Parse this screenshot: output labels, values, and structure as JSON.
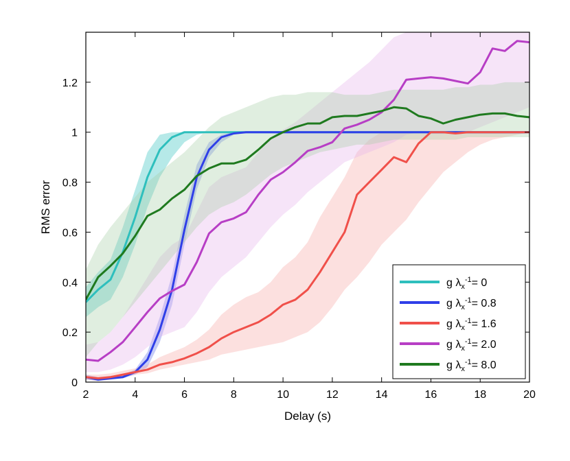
{
  "chart_data": {
    "type": "line",
    "title": "",
    "xlabel": "Delay (s)",
    "ylabel": "RMS error",
    "xlim": [
      2,
      20
    ],
    "ylim": [
      0,
      1.4
    ],
    "xticks": [
      2,
      4,
      6,
      8,
      10,
      12,
      14,
      16,
      18,
      20
    ],
    "yticks": [
      0,
      0.2,
      0.4,
      0.6,
      0.8,
      1,
      1.2
    ],
    "xtick_labels": [
      "2",
      "4",
      "6",
      "8",
      "10",
      "12",
      "14",
      "16",
      "18",
      "20"
    ],
    "ytick_labels": [
      "0",
      "0.2",
      "0.4",
      "0.6",
      "0.8",
      "1",
      "1.2"
    ],
    "grid": false,
    "legend_position": "bottom-right",
    "series": [
      {
        "name": "g λx-1= 0",
        "legend_prefix": "g λ",
        "legend_sub": "x",
        "legend_sup": "-1",
        "legend_value": "= 0",
        "color": "#2ebfbd",
        "x": [
          2,
          2.5,
          3,
          3.5,
          4,
          4.5,
          5,
          5.5,
          6,
          6.5,
          7,
          7.5,
          8,
          9,
          10,
          12,
          14,
          16,
          18,
          20
        ],
        "y": [
          0.32,
          0.37,
          0.41,
          0.52,
          0.66,
          0.82,
          0.93,
          0.98,
          1.0,
          1.0,
          1.0,
          1.0,
          1.0,
          1.0,
          1.0,
          1.0,
          1.0,
          1.0,
          1.0,
          1.0
        ],
        "band_lower": [
          0.26,
          0.3,
          0.33,
          0.42,
          0.55,
          0.7,
          0.82,
          0.9,
          0.96,
          0.99,
          1.0,
          1.0,
          1.0,
          1.0,
          1.0,
          1.0,
          1.0,
          1.0,
          1.0,
          1.0
        ],
        "band_upper": [
          0.38,
          0.44,
          0.49,
          0.62,
          0.77,
          0.92,
          0.99,
          1.0,
          1.0,
          1.0,
          1.0,
          1.0,
          1.0,
          1.0,
          1.0,
          1.0,
          1.0,
          1.0,
          1.0,
          1.0
        ],
        "band_color": "#2ebfbd"
      },
      {
        "name": "g λx-1= 0.8",
        "legend_prefix": "g λ",
        "legend_sub": "x",
        "legend_sup": "-1",
        "legend_value": "= 0.8",
        "color": "#2f3fe8",
        "x": [
          2,
          2.5,
          3,
          3.5,
          4,
          4.5,
          5,
          5.5,
          6,
          6.5,
          7,
          7.5,
          8,
          8.5,
          9,
          10,
          12,
          14,
          16,
          18,
          20
        ],
        "y": [
          0.02,
          0.01,
          0.015,
          0.02,
          0.04,
          0.09,
          0.21,
          0.37,
          0.61,
          0.82,
          0.93,
          0.98,
          0.995,
          1.0,
          1.0,
          1.0,
          1.0,
          1.0,
          1.0,
          1.0,
          1.0
        ],
        "band_lower": [
          0.01,
          0.005,
          0.01,
          0.015,
          0.03,
          0.06,
          0.16,
          0.31,
          0.55,
          0.77,
          0.9,
          0.96,
          0.99,
          1.0,
          1.0,
          1.0,
          1.0,
          1.0,
          1.0,
          1.0,
          1.0
        ],
        "band_upper": [
          0.03,
          0.02,
          0.025,
          0.03,
          0.05,
          0.12,
          0.26,
          0.43,
          0.67,
          0.87,
          0.96,
          0.99,
          1.0,
          1.0,
          1.0,
          1.0,
          1.0,
          1.0,
          1.0,
          1.0,
          1.0
        ],
        "band_color": "#5b6ee8"
      },
      {
        "name": "g λx-1= 1.6",
        "legend_prefix": "g λ",
        "legend_sub": "x",
        "legend_sup": "-1",
        "legend_value": "= 1.6",
        "color": "#f0504a",
        "x": [
          2,
          2.5,
          3,
          3.5,
          4,
          4.5,
          5,
          5.5,
          6,
          6.5,
          7,
          7.5,
          8,
          8.5,
          9,
          9.5,
          10,
          10.5,
          11,
          11.5,
          12,
          12.5,
          13,
          13.5,
          14,
          14.5,
          15,
          15.5,
          16,
          16.5,
          17,
          17.5,
          18,
          18.5,
          19,
          19.5,
          20
        ],
        "y": [
          0.02,
          0.015,
          0.02,
          0.03,
          0.04,
          0.05,
          0.07,
          0.08,
          0.095,
          0.115,
          0.14,
          0.175,
          0.2,
          0.22,
          0.24,
          0.27,
          0.31,
          0.33,
          0.37,
          0.44,
          0.52,
          0.6,
          0.75,
          0.8,
          0.85,
          0.9,
          0.88,
          0.955,
          1.0,
          1.0,
          0.995,
          1.0,
          1.0,
          1.0,
          1.0,
          1.0,
          1.0
        ],
        "band_lower": [
          0.01,
          0.005,
          0.01,
          0.02,
          0.03,
          0.035,
          0.05,
          0.06,
          0.07,
          0.08,
          0.09,
          0.11,
          0.12,
          0.13,
          0.14,
          0.15,
          0.16,
          0.18,
          0.2,
          0.24,
          0.3,
          0.37,
          0.42,
          0.48,
          0.55,
          0.6,
          0.65,
          0.72,
          0.78,
          0.84,
          0.88,
          0.92,
          0.95,
          0.97,
          0.98,
          0.99,
          1.0
        ],
        "band_upper": [
          0.03,
          0.03,
          0.035,
          0.045,
          0.055,
          0.07,
          0.1,
          0.12,
          0.14,
          0.17,
          0.21,
          0.27,
          0.31,
          0.34,
          0.36,
          0.4,
          0.46,
          0.5,
          0.56,
          0.66,
          0.74,
          0.82,
          0.92,
          0.97,
          1.0,
          1.0,
          1.0,
          1.0,
          1.0,
          1.0,
          1.0,
          1.0,
          1.0,
          1.0,
          1.0,
          1.0,
          1.0
        ],
        "band_color": "#f7a6a2"
      },
      {
        "name": "g λx-1= 2.0",
        "legend_prefix": "g λ",
        "legend_sub": "x",
        "legend_sup": "-1",
        "legend_value": "= 2.0",
        "color": "#b73ec5",
        "x": [
          2,
          2.5,
          3,
          3.5,
          4,
          4.5,
          5,
          5.5,
          6,
          6.5,
          7,
          7.5,
          8,
          8.5,
          9,
          9.5,
          10,
          10.5,
          11,
          11.5,
          12,
          12.5,
          13,
          13.5,
          14,
          14.5,
          15,
          15.5,
          16,
          16.5,
          17,
          17.5,
          18,
          18.5,
          19,
          19.5,
          20
        ],
        "y": [
          0.09,
          0.085,
          0.12,
          0.16,
          0.22,
          0.28,
          0.335,
          0.365,
          0.39,
          0.48,
          0.595,
          0.64,
          0.655,
          0.68,
          0.75,
          0.81,
          0.84,
          0.88,
          0.925,
          0.94,
          0.96,
          1.015,
          1.03,
          1.05,
          1.08,
          1.13,
          1.21,
          1.215,
          1.22,
          1.215,
          1.205,
          1.195,
          1.24,
          1.335,
          1.325,
          1.365,
          1.36
        ],
        "band_lower": [
          0.04,
          0.04,
          0.05,
          0.07,
          0.1,
          0.14,
          0.18,
          0.2,
          0.22,
          0.28,
          0.36,
          0.42,
          0.46,
          0.5,
          0.56,
          0.62,
          0.67,
          0.71,
          0.76,
          0.8,
          0.84,
          0.88,
          0.9,
          0.92,
          0.94,
          0.96,
          0.99,
          1.0,
          1.0,
          1.0,
          1.0,
          1.0,
          1.02,
          1.04,
          1.06,
          1.08,
          1.1
        ],
        "band_upper": [
          0.15,
          0.16,
          0.2,
          0.26,
          0.34,
          0.42,
          0.5,
          0.55,
          0.58,
          0.68,
          0.78,
          0.82,
          0.84,
          0.86,
          0.92,
          0.98,
          1.01,
          1.04,
          1.08,
          1.12,
          1.16,
          1.2,
          1.24,
          1.28,
          1.33,
          1.38,
          1.4,
          1.4,
          1.4,
          1.4,
          1.4,
          1.4,
          1.4,
          1.4,
          1.4,
          1.4,
          1.4
        ],
        "band_color": "#e4b3ec"
      },
      {
        "name": "g λx-1= 8.0",
        "legend_prefix": "g λ",
        "legend_sub": "x",
        "legend_sup": "-1",
        "legend_value": "= 8.0",
        "color": "#1f7a1f",
        "x": [
          2,
          2.5,
          3,
          3.5,
          4,
          4.5,
          5,
          5.5,
          6,
          6.5,
          7,
          7.5,
          8,
          8.5,
          9,
          9.5,
          10,
          10.5,
          11,
          11.5,
          12,
          12.5,
          13,
          13.5,
          14,
          14.5,
          15,
          15.5,
          16,
          16.5,
          17,
          17.5,
          18,
          18.5,
          19,
          19.5,
          20
        ],
        "y": [
          0.33,
          0.42,
          0.465,
          0.515,
          0.585,
          0.665,
          0.69,
          0.735,
          0.77,
          0.825,
          0.855,
          0.875,
          0.875,
          0.89,
          0.93,
          0.975,
          1.0,
          1.02,
          1.035,
          1.035,
          1.06,
          1.065,
          1.065,
          1.075,
          1.085,
          1.1,
          1.095,
          1.065,
          1.055,
          1.035,
          1.05,
          1.06,
          1.07,
          1.075,
          1.075,
          1.065,
          1.06
        ],
        "band_lower": [
          0.1,
          0.16,
          0.2,
          0.26,
          0.32,
          0.38,
          0.44,
          0.5,
          0.56,
          0.62,
          0.67,
          0.7,
          0.72,
          0.75,
          0.79,
          0.83,
          0.86,
          0.88,
          0.9,
          0.92,
          0.93,
          0.94,
          0.95,
          0.95,
          0.96,
          0.97,
          0.97,
          0.97,
          0.97,
          0.97,
          0.97,
          0.98,
          0.98,
          0.98,
          0.98,
          0.98,
          0.98
        ],
        "band_upper": [
          0.45,
          0.55,
          0.62,
          0.68,
          0.74,
          0.8,
          0.84,
          0.88,
          0.92,
          0.97,
          1.02,
          1.06,
          1.08,
          1.1,
          1.12,
          1.14,
          1.15,
          1.15,
          1.16,
          1.16,
          1.16,
          1.15,
          1.15,
          1.15,
          1.16,
          1.17,
          1.17,
          1.17,
          1.17,
          1.17,
          1.18,
          1.18,
          1.19,
          1.19,
          1.2,
          1.2,
          1.2
        ],
        "band_color": "#a5cfa5"
      }
    ]
  }
}
